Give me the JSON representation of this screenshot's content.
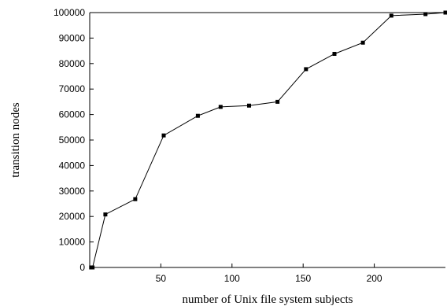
{
  "chart_data": {
    "type": "line",
    "title": "",
    "xlabel": "number of Unix file system subjects",
    "ylabel": "transition nodes",
    "xlim": [
      0,
      250
    ],
    "ylim": [
      0,
      100000
    ],
    "xticks": [
      50,
      100,
      150,
      200
    ],
    "yticks": [
      0,
      10000,
      20000,
      30000,
      40000,
      50000,
      60000,
      70000,
      80000,
      90000,
      100000
    ],
    "grid": false,
    "legend": "none",
    "series": [
      {
        "color": "#000000",
        "marker": "square",
        "points": [
          [
            1,
            0
          ],
          [
            2,
            0
          ],
          [
            11,
            20800
          ],
          [
            32,
            26800
          ],
          [
            52,
            51800
          ],
          [
            76,
            59500
          ],
          [
            92,
            63000
          ],
          [
            112,
            63500
          ],
          [
            132,
            65000
          ],
          [
            152,
            77800
          ],
          [
            172,
            83800
          ],
          [
            192,
            88200
          ],
          [
            212,
            98800
          ],
          [
            236,
            99400
          ],
          [
            250,
            100000
          ]
        ]
      }
    ]
  }
}
